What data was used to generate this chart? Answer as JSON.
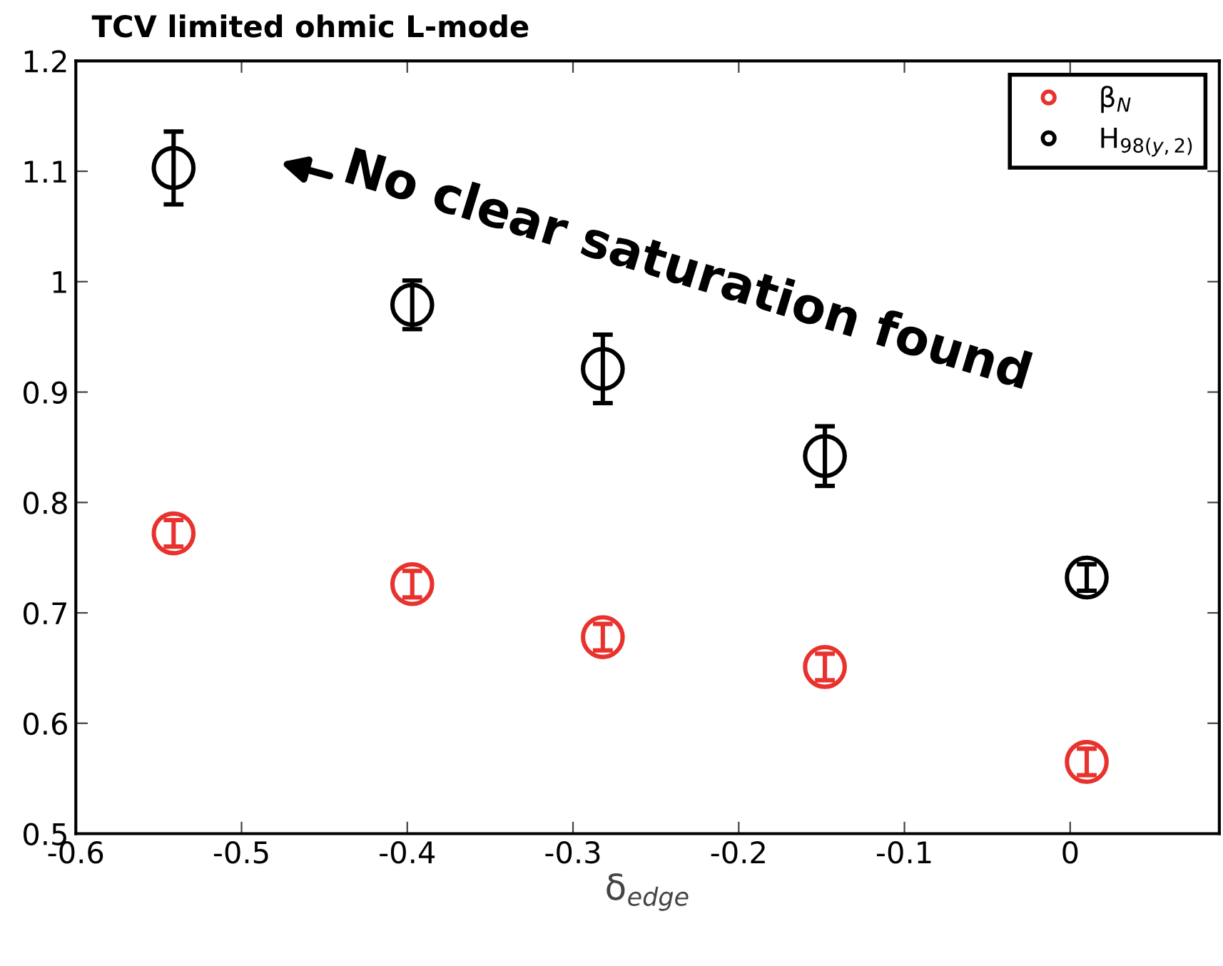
{
  "chart_data": {
    "type": "scatter",
    "title": "TCV limited ohmic L-mode",
    "xlabel": "δ$_{edge}$",
    "series": [
      {
        "name": "β$_{N}$",
        "color": "#e8322e",
        "x": [
          -0.541,
          -0.397,
          -0.282,
          -0.148,
          0.01
        ],
        "values": [
          0.772,
          0.726,
          0.678,
          0.651,
          0.565
        ],
        "errors": [
          0.012,
          0.012,
          0.012,
          0.012,
          0.012
        ]
      },
      {
        "name": "H$_{98(y,2)}$",
        "color": "#000000",
        "x": [
          -0.541,
          -0.397,
          -0.282,
          -0.148,
          0.01
        ],
        "values": [
          1.103,
          0.979,
          0.921,
          0.842,
          0.732
        ],
        "errors": [
          0.033,
          0.022,
          0.031,
          0.027,
          0.012
        ]
      }
    ],
    "xlim": [
      -0.6,
      0.09
    ],
    "xticks": [
      -0.6,
      -0.5,
      -0.4,
      -0.3,
      -0.2,
      -0.1,
      0
    ],
    "ylim": [
      0.5,
      1.2
    ],
    "yticks": [
      0.5,
      0.6,
      0.7,
      0.8,
      0.9,
      1,
      1.1,
      1.2
    ],
    "marker": "circle",
    "grid": false,
    "legend": "top right",
    "annotations": [
      "No clear saturation found"
    ]
  }
}
